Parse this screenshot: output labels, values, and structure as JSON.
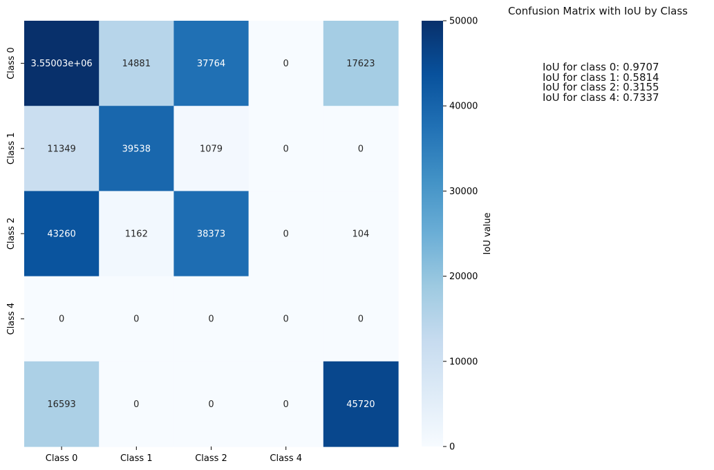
{
  "title": "Confusion Matrix with IoU by Class",
  "iou_lines": [
    "IoU for class 0: 0.9707",
    "IoU for class 1: 0.5814",
    "IoU for class 2: 0.3155",
    "IoU for class 4: 0.7337"
  ],
  "chart_data": {
    "type": "heatmap",
    "colormap": "Blues",
    "color_range": [
      0,
      50000
    ],
    "row_labels": [
      "Class 0",
      "Class 1",
      "Class 2",
      "Class 4",
      ""
    ],
    "col_labels": [
      "Class 0",
      "Class 1",
      "Class 2",
      "Class 4",
      ""
    ],
    "values": [
      [
        3550030,
        14881,
        37764,
        0,
        17623
      ],
      [
        11349,
        39538,
        1079,
        0,
        0
      ],
      [
        43260,
        1162,
        38373,
        0,
        104
      ],
      [
        0,
        0,
        0,
        0,
        0
      ],
      [
        16593,
        0,
        0,
        0,
        45720
      ]
    ],
    "cell_labels": [
      [
        "3.55003e+06",
        "14881",
        "37764",
        "0",
        "17623"
      ],
      [
        "11349",
        "39538",
        "1079",
        "0",
        "0"
      ],
      [
        "43260",
        "1162",
        "38373",
        "0",
        "104"
      ],
      [
        "0",
        "0",
        "0",
        "0",
        "0"
      ],
      [
        "16593",
        "0",
        "0",
        "0",
        "45720"
      ]
    ],
    "colorbar": {
      "label": "IoU value",
      "ticks": [
        0,
        10000,
        20000,
        30000,
        40000,
        50000
      ]
    }
  }
}
